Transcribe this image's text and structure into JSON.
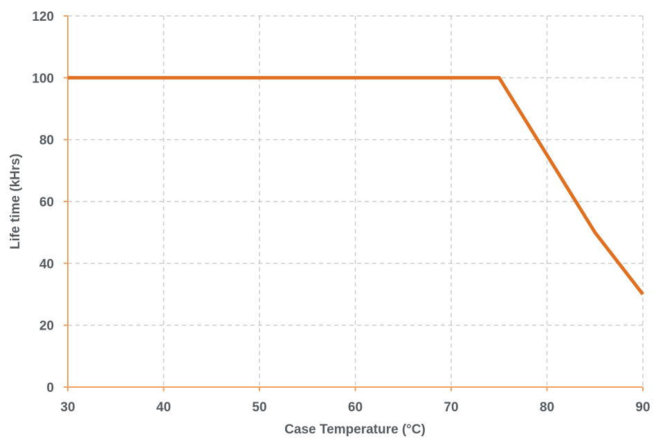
{
  "chart_data": {
    "type": "line",
    "title": "",
    "xlabel": "Case Temperature (°C)",
    "ylabel": "Life time (kHrs)",
    "xlim": [
      30,
      90
    ],
    "ylim": [
      0,
      120
    ],
    "x_ticks": [
      30,
      40,
      50,
      60,
      70,
      80,
      90
    ],
    "y_ticks": [
      0,
      20,
      40,
      60,
      80,
      100,
      120
    ],
    "grid": true,
    "legend": null,
    "series": [
      {
        "name": "Life time",
        "color": "#e07020",
        "x": [
          30,
          75,
          85,
          90
        ],
        "y": [
          100,
          100,
          50,
          30
        ]
      }
    ]
  },
  "colors": {
    "axis": "#f0a060",
    "grid": "#cccccc",
    "text": "#555a5f",
    "line": "#e07020"
  }
}
